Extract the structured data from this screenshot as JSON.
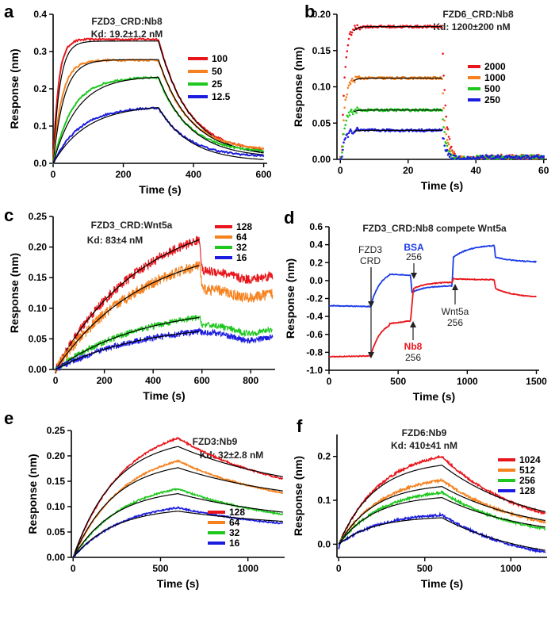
{
  "chart_data": [
    {
      "panel": "a",
      "type": "line",
      "title_a": "FZD3_CRD:Nb8",
      "title_b": "Kd: 19.2±1.2 nM",
      "xlabel": "Time (s)",
      "ylabel": "Response (nm)",
      "xlim": [
        0,
        610
      ],
      "ylim": [
        0,
        0.4
      ],
      "xticks": [
        0,
        200,
        400,
        600
      ],
      "xtick_labels": [
        "0",
        "200",
        "400",
        "600"
      ],
      "yticks": [
        0,
        0.1,
        0.2,
        0.3,
        0.4
      ],
      "ytick_labels": [
        "0.0",
        "0.1",
        "0.2",
        "0.3",
        "0.4"
      ],
      "t_assoc": 300,
      "t_end": 600,
      "series": [
        {
          "name": "100",
          "color": "#e8161c",
          "peak": 0.333,
          "kon": 0.065,
          "final": 0.038
        },
        {
          "name": "50",
          "color": "#f5821f",
          "peak": 0.277,
          "kon": 0.04,
          "final": 0.04
        },
        {
          "name": "25",
          "color": "#1ec81e",
          "peak": 0.23,
          "kon": 0.018,
          "final": 0.033
        },
        {
          "name": "12.5",
          "color": "#1c1ce0",
          "peak": 0.149,
          "kon": 0.013,
          "final": 0.02
        }
      ]
    },
    {
      "panel": "b",
      "type": "line",
      "title_a": "FZD6_CRD:Nb8",
      "title_b": "Kd: 1200±200 nM",
      "xlabel": "Time (s)",
      "ylabel": "Response (nm)",
      "xlim": [
        -1,
        61
      ],
      "ylim": [
        0,
        0.2
      ],
      "xticks": [
        0,
        20,
        40,
        60
      ],
      "xtick_labels": [
        "0",
        "20",
        "40",
        "60"
      ],
      "yticks": [
        0,
        0.05,
        0.1,
        0.15,
        0.2
      ],
      "ytick_labels": [
        "0.00",
        "0.05",
        "0.10",
        "0.15",
        "0.20"
      ],
      "t_assoc": 30,
      "t_end": 60,
      "series": [
        {
          "name": "2000",
          "color": "#e8161c",
          "peak": 0.183
        },
        {
          "name": "1000",
          "color": "#f5821f",
          "peak": 0.112
        },
        {
          "name": "500",
          "color": "#1ec81e",
          "peak": 0.068
        },
        {
          "name": "250",
          "color": "#1c1ce0",
          "peak": 0.04
        }
      ]
    },
    {
      "panel": "c",
      "type": "line",
      "title_a": "FZD3_CRD:Wnt5a",
      "title_b": "Kd: 83±4 nM",
      "xlabel": "Time (s)",
      "ylabel": "Response (nm)",
      "xlim": [
        -10,
        900
      ],
      "ylim": [
        0,
        0.25
      ],
      "xticks": [
        0,
        200,
        400,
        600,
        800
      ],
      "xtick_labels": [
        "0",
        "200",
        "400",
        "600",
        "800"
      ],
      "yticks": [
        0,
        0.05,
        0.1,
        0.15,
        0.2,
        0.25
      ],
      "ytick_labels": [
        "0.00",
        "0.05",
        "0.10",
        "0.15",
        "0.20",
        "0.25"
      ],
      "t_assoc": 590,
      "t_end": 890,
      "series": [
        {
          "name": "128",
          "color": "#e8161c",
          "peak": 0.212,
          "final": 0.15
        },
        {
          "name": "64",
          "color": "#f5821f",
          "peak": 0.17,
          "final": 0.12
        },
        {
          "name": "32",
          "color": "#1ec81e",
          "peak": 0.085,
          "final": 0.062
        },
        {
          "name": "16",
          "color": "#1c1ce0",
          "peak": 0.062,
          "final": 0.05
        }
      ]
    },
    {
      "panel": "d",
      "type": "line",
      "title_a": "FZD3_CRD:Nb8 compete Wnt5a",
      "xlabel": "Time (s)",
      "ylabel": "Response (nm)",
      "xlim": [
        0,
        1520
      ],
      "ylim": [
        -1.0,
        0.6
      ],
      "xticks": [
        0,
        500,
        1000,
        1500
      ],
      "xtick_labels": [
        "0",
        "500",
        "1000",
        "1500"
      ],
      "yticks": [
        -1.0,
        -0.8,
        -0.6,
        -0.4,
        -0.2,
        0,
        0.2,
        0.4,
        0.6
      ],
      "ytick_labels": [
        "-1.0",
        "-0.8",
        "-0.6",
        "-0.4",
        "-0.2",
        "0.0",
        "0.2",
        "0.4",
        "0.6"
      ],
      "series": [
        {
          "name": "BSA trace",
          "color": "#1c3ce8"
        },
        {
          "name": "Nb8 trace",
          "color": "#e8161c"
        }
      ],
      "annotations": [
        {
          "line1": "FZD3",
          "line2": "CRD",
          "color": "#222222"
        },
        {
          "line1": "BSA",
          "line2": "256",
          "color": "#1c3ce8"
        },
        {
          "line1": "Nb8",
          "line2": "256",
          "color": "#e8161c"
        },
        {
          "line1": "Wnt5a",
          "line2": "256",
          "color": "#222222"
        }
      ]
    },
    {
      "panel": "e",
      "type": "line",
      "title_a": "FZD3:Nb9",
      "title_b": "Kd: 32±2.8 nM",
      "xlabel": "Time (s)",
      "ylabel": "Response (nm)",
      "xlim": [
        -10,
        1210
      ],
      "ylim": [
        0,
        0.25
      ],
      "xticks": [
        0,
        500,
        1000
      ],
      "xtick_labels": [
        "0",
        "500",
        "1000"
      ],
      "yticks": [
        0,
        0.05,
        0.1,
        0.15,
        0.2,
        0.25
      ],
      "ytick_labels": [
        "0.00",
        "0.05",
        "0.10",
        "0.15",
        "0.20",
        "0.25"
      ],
      "t_assoc": 600,
      "t_end": 1200,
      "series": [
        {
          "name": "128",
          "color": "#e8161c",
          "peak": 0.235,
          "final": 0.155
        },
        {
          "name": "64",
          "color": "#f5821f",
          "peak": 0.19,
          "final": 0.127
        },
        {
          "name": "32",
          "color": "#1ec81e",
          "peak": 0.135,
          "final": 0.085
        },
        {
          "name": "16",
          "color": "#1c1ce0",
          "peak": 0.098,
          "final": 0.067
        }
      ]
    },
    {
      "panel": "f",
      "type": "line",
      "title_a": "FZD6:Nb9",
      "title_b": "Kd: 410±41 nM",
      "xlabel": "Time (s)",
      "ylabel": "Response (nm)",
      "xlim": [
        -10,
        1210
      ],
      "ylim": [
        -0.03,
        0.25
      ],
      "xticks": [
        0,
        500,
        1000
      ],
      "xtick_labels": [
        "0",
        "500",
        "1000"
      ],
      "yticks": [
        0,
        0.1,
        0.2
      ],
      "ytick_labels": [
        "0.0",
        "0.1",
        "0.2"
      ],
      "t_assoc": 600,
      "t_end": 1200,
      "series": [
        {
          "name": "1024",
          "color": "#e8161c",
          "peak": 0.2,
          "final": 0.07
        },
        {
          "name": "512",
          "color": "#f5821f",
          "peak": 0.146,
          "final": 0.05
        },
        {
          "name": "256",
          "color": "#1ec81e",
          "peak": 0.118,
          "final": 0.035
        },
        {
          "name": "128",
          "color": "#1c1ce0",
          "peak": 0.067,
          "final": -0.018
        }
      ]
    }
  ]
}
